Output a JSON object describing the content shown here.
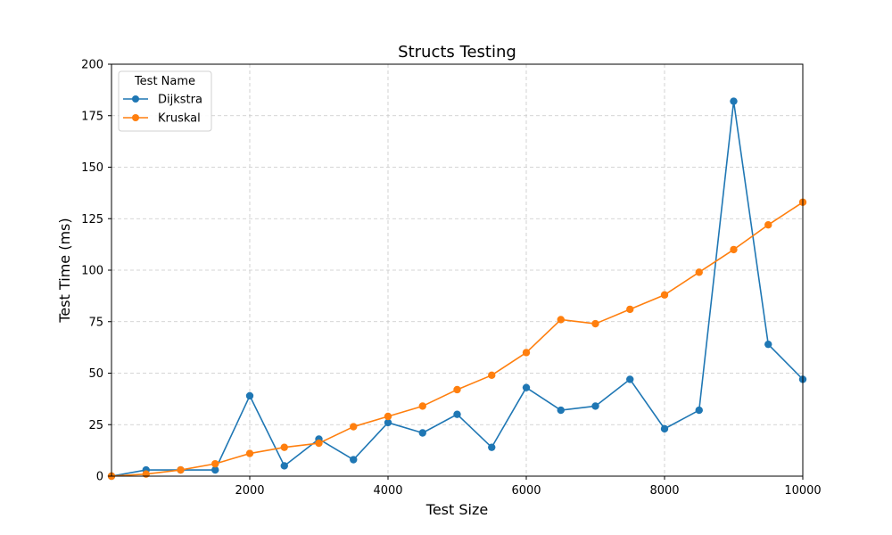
{
  "chart_data": {
    "type": "line",
    "title": "Structs Testing",
    "xlabel": "Test Size",
    "ylabel": "Test Time (ms)",
    "xlim": [
      0,
      10000
    ],
    "ylim": [
      0,
      200
    ],
    "x_ticks": [
      2000,
      4000,
      6000,
      8000,
      10000
    ],
    "y_ticks": [
      0,
      25,
      50,
      75,
      100,
      125,
      150,
      175,
      200
    ],
    "grid": true,
    "grid_style": "dashed",
    "legend_title": "Test Name",
    "legend_position": "upper-left",
    "x": [
      0,
      500,
      1000,
      1500,
      2000,
      2500,
      3000,
      3500,
      4000,
      4500,
      5000,
      5500,
      6000,
      6500,
      7000,
      7500,
      8000,
      8500,
      9000,
      9500,
      10000
    ],
    "series": [
      {
        "name": "Dijkstra",
        "color": "#1f77b4",
        "values": [
          0,
          3,
          3,
          3,
          39,
          5,
          18,
          8,
          26,
          21,
          30,
          14,
          43,
          32,
          34,
          47,
          23,
          32,
          182,
          64,
          47
        ]
      },
      {
        "name": "Kruskal",
        "color": "#ff7f0e",
        "values": [
          0,
          1,
          3,
          6,
          11,
          14,
          16,
          24,
          29,
          34,
          42,
          49,
          60,
          76,
          74,
          81,
          88,
          99,
          110,
          122,
          133
        ]
      }
    ]
  }
}
